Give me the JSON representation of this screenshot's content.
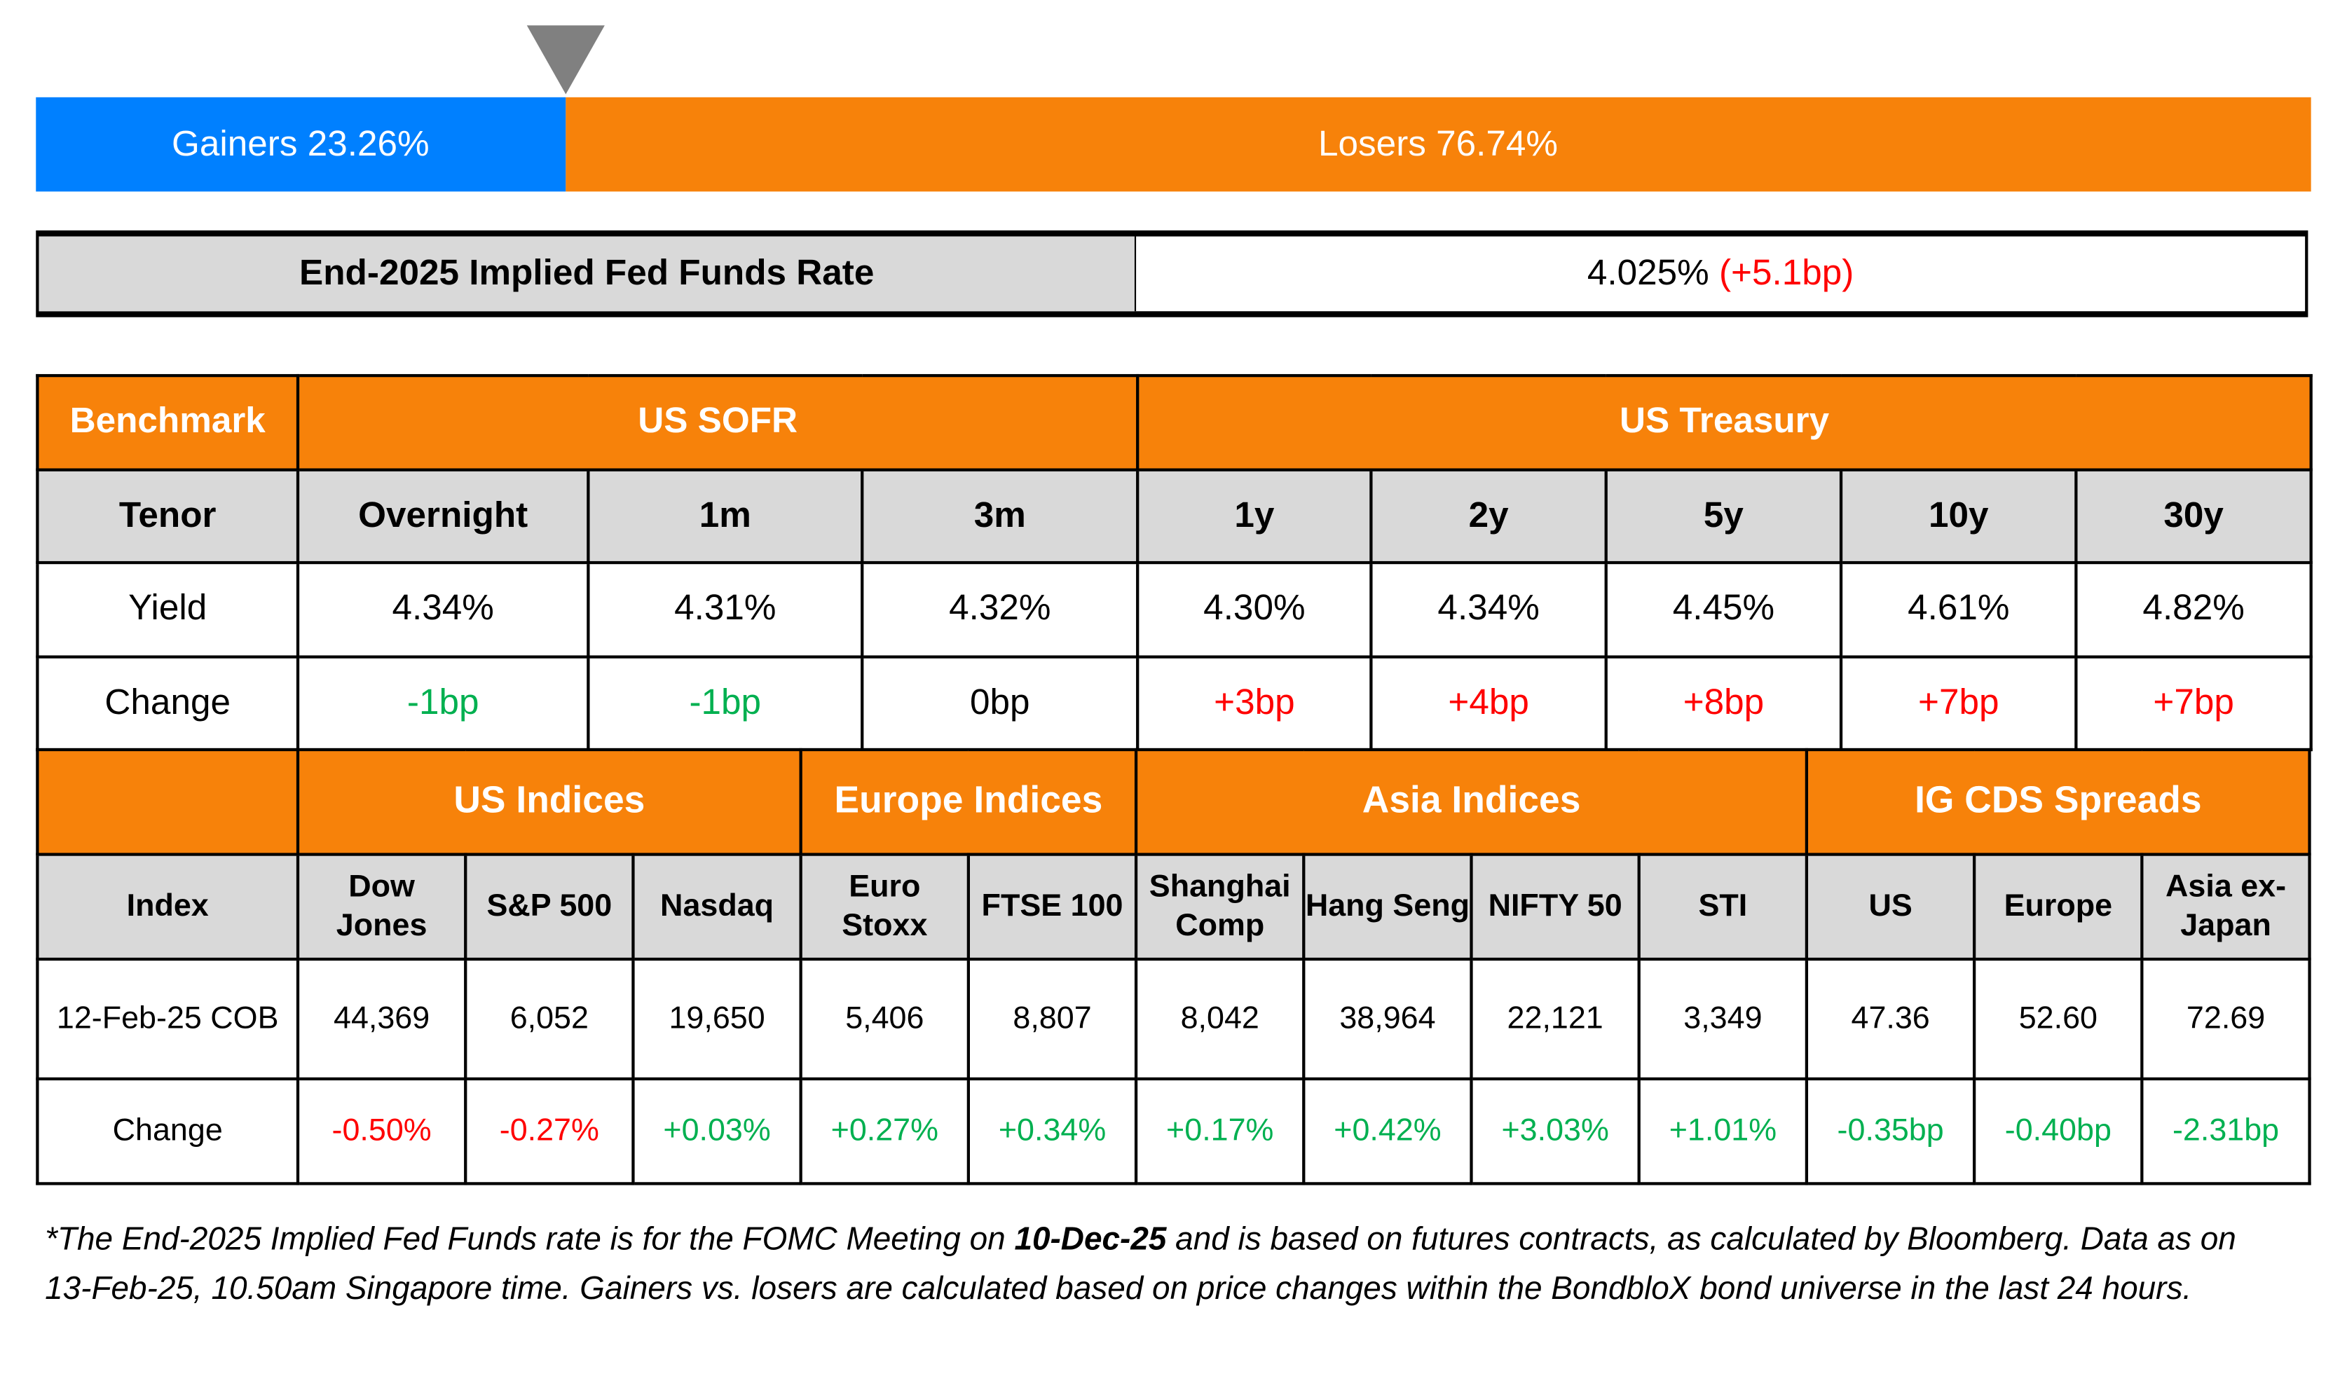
{
  "breadth": {
    "gainers_label": "Gainers 23.26%",
    "losers_label": "Losers 76.74%",
    "gainers_pct": 23.26,
    "losers_pct": 76.74,
    "colors": {
      "gainers": "#0080ff",
      "losers": "#f7820a"
    }
  },
  "fed": {
    "label": "End-2025 Implied Fed Funds Rate",
    "value": "4.025%",
    "change": "(+5.1bp)"
  },
  "rates": {
    "benchmark_label": "Benchmark",
    "group1": "US SOFR",
    "group2": "US Treasury",
    "tenor_label": "Tenor",
    "tenors": [
      "Overnight",
      "1m",
      "3m",
      "1y",
      "2y",
      "5y",
      "10y",
      "30y"
    ],
    "yield_label": "Yield",
    "yields": [
      "4.34%",
      "4.31%",
      "4.32%",
      "4.30%",
      "4.34%",
      "4.45%",
      "4.61%",
      "4.82%"
    ],
    "change_label": "Change",
    "changes": [
      "-1bp",
      "-1bp",
      "0bp",
      "+3bp",
      "+4bp",
      "+8bp",
      "+7bp",
      "+7bp"
    ]
  },
  "indices": {
    "groups": [
      "US Indices",
      "Europe Indices",
      "Asia Indices",
      "IG CDS Spreads"
    ],
    "index_label": "Index",
    "names": [
      "Dow Jones",
      "S&P 500",
      "Nasdaq",
      "Euro Stoxx",
      "FTSE 100",
      "Shanghai Comp",
      "Hang Seng",
      "NIFTY 50",
      "STI",
      "US",
      "Europe",
      "Asia ex-Japan"
    ],
    "date_label": "12-Feb-25 COB",
    "values": [
      "44,369",
      "6,052",
      "19,650",
      "5,406",
      "8,807",
      "8,042",
      "38,964",
      "22,121",
      "3,349",
      "47.36",
      "52.60",
      "72.69"
    ],
    "change_label": "Change",
    "changes": [
      "-0.50%",
      "-0.27%",
      "+0.03%",
      "+0.27%",
      "+0.34%",
      "+0.17%",
      "+0.42%",
      "+3.03%",
      "+1.01%",
      "-0.35bp",
      "-0.40bp",
      "-2.31bp"
    ]
  },
  "footnote": {
    "part1": "*The End-2025 Implied Fed Funds rate is for the FOMC Meeting on ",
    "bold": "10-Dec-25",
    "part2": " and is based on futures contracts, as calculated by Bloomberg. Data as on 13-Feb-25, 10.50am Singapore time. Gainers vs. losers are calculated based on price changes within the BondbloX bond universe in the last 24 hours."
  }
}
